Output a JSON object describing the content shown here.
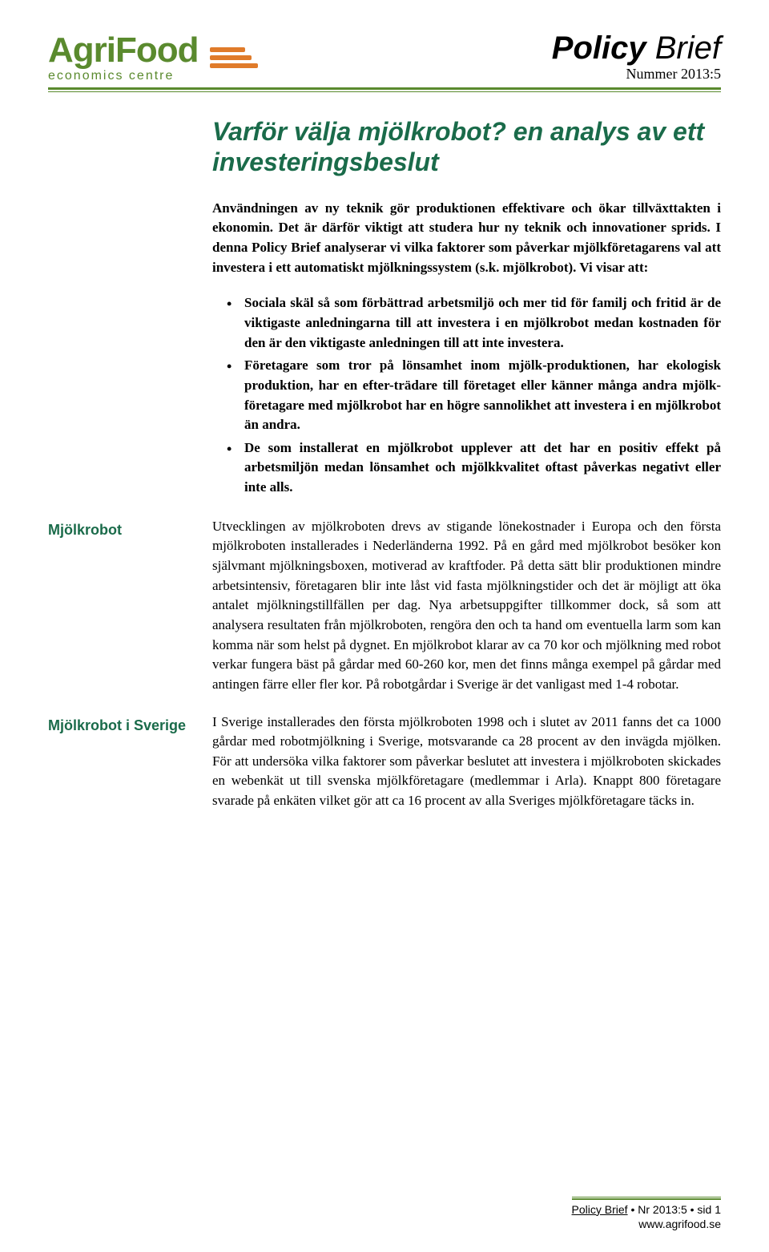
{
  "colors": {
    "brand_green": "#5a8a2e",
    "brand_orange": "#e07b2a",
    "heading_green": "#1a6b4a",
    "text": "#000000",
    "background": "#ffffff"
  },
  "typography": {
    "title_fontsize_pt": 32,
    "body_fontsize_pt": 17,
    "side_label_fontsize_pt": 18,
    "header_title_fontsize_pt": 40
  },
  "header": {
    "logo_main": "AgriFood",
    "logo_sub": "economics centre",
    "logo_bar_widths": [
      44,
      52,
      60
    ],
    "title_bold": "Policy",
    "title_light": "Brief",
    "issue": "Nummer 2013:5"
  },
  "document": {
    "title": "Varför välja mjölkrobot? en analys av ett investeringsbeslut",
    "intro": "Användningen av ny teknik gör produktionen effektivare och ökar tillväxttakten i ekonomin. Det är därför viktigt att studera hur ny teknik och innovationer sprids. I denna Policy Brief analyserar vi vilka faktorer som påverkar mjölkföretagarens val att investera i ett automatiskt mjölkningssystem (s.k. mjölkrobot). Vi visar att:",
    "bullets": [
      "Sociala skäl så som förbättrad arbetsmiljö och mer tid för familj och fritid är de viktigaste anledningarna till att investera i en mjölkrobot medan kostnaden för den är den viktigaste anledningen till att inte investera.",
      "Företagare som tror på lönsamhet inom mjölk-produktionen, har ekologisk produktion, har en efter-trädare till företaget eller känner många andra mjölk-företagare med mjölkrobot har en högre sannolikhet att investera i en mjölkrobot än andra.",
      "De som installerat en mjölkrobot upplever att det har en positiv effekt på arbetsmiljön medan lönsamhet och mjölkkvalitet oftast påverkas negativt eller inte alls."
    ],
    "sections": [
      {
        "side_label": "Mjölkrobot",
        "text": "Utvecklingen av mjölkroboten drevs av stigande lönekostnader i Europa och den första mjölkroboten installerades i Nederländerna 1992. På en gård med mjölkrobot besöker kon självmant mjölkningsboxen, motiverad av kraftfoder. På detta sätt blir produktionen mindre arbetsintensiv, företagaren blir inte låst vid fasta mjölkningstider och det är möjligt att öka antalet mjölkningstillfällen per dag. Nya arbetsuppgifter tillkommer dock, så som att analysera resultaten från mjölkroboten, rengöra den och ta hand om eventuella larm som kan komma när som helst på dygnet. En mjölkrobot klarar av ca 70 kor och mjölkning med robot verkar fungera bäst på gårdar med 60-260 kor, men det finns många exempel på gårdar med antingen färre eller fler kor. På robotgårdar i Sverige är det vanligast med 1-4 robotar."
      },
      {
        "side_label": "Mjölkrobot i Sverige",
        "text": "I Sverige installerades den första mjölkroboten 1998 och i slutet av 2011 fanns det ca 1000 gårdar med robotmjölkning i Sverige, motsvarande ca 28 procent av den invägda mjölken. För att undersöka vilka faktorer som påverkar beslutet att investera i mjölkroboten skickades en webenkät ut till svenska mjölkföretagare (medlemmar i Arla). Knappt 800 företagare svarade på enkäten vilket gör att ca 16 procent av alla Sveriges mjölkföretagare täcks in."
      }
    ]
  },
  "footer": {
    "line1_prefix": "Policy Brief",
    "line1_suffix": " • Nr 2013:5 • sid 1",
    "url": "www.agrifood.se"
  }
}
